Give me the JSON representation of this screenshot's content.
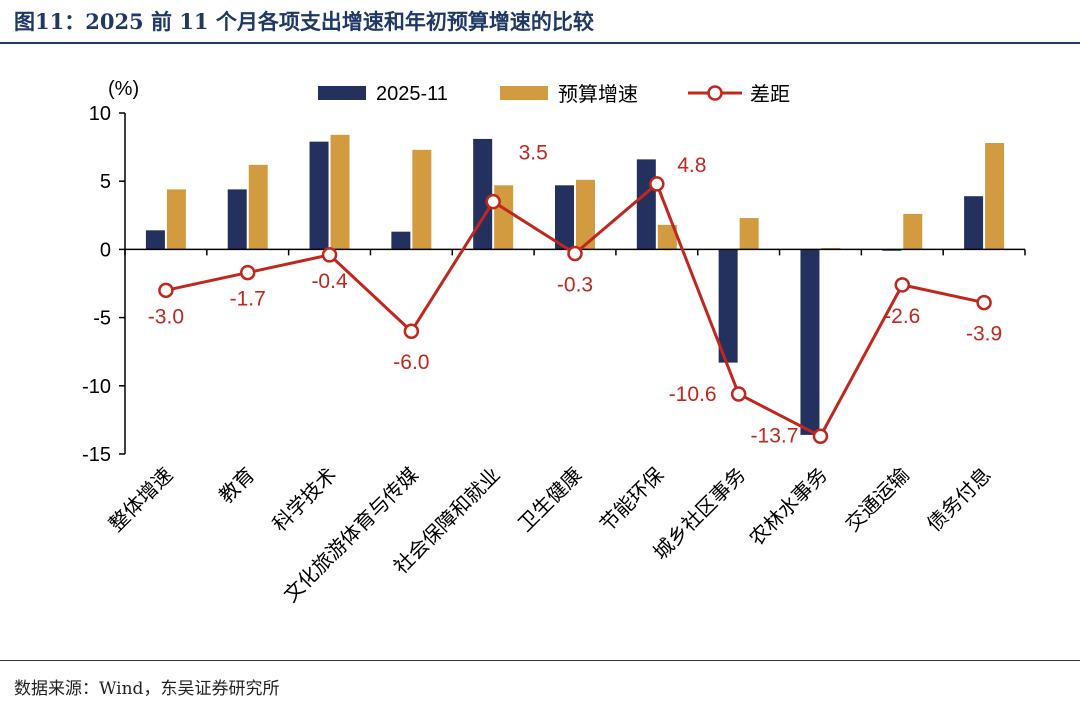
{
  "title": "图11：2025 前 11 个月各项支出增速和年初预算增速的比较",
  "source": "数据来源：Wind，东吴证券研究所",
  "colors": {
    "navy": "#24315e",
    "gold": "#d39b3f",
    "red": "#c0271e"
  },
  "chart_data": {
    "type": "bar",
    "unit_label": "(%)",
    "categories": [
      "整体增速",
      "教育",
      "科学技术",
      "文化旅游体育与传媒",
      "社会保障和就业",
      "卫生健康",
      "节能环保",
      "城乡社区事务",
      "农林水事务",
      "交通运输",
      "债务付息"
    ],
    "series": [
      {
        "name": "2025-11",
        "type": "bar",
        "values": [
          1.4,
          4.4,
          7.9,
          1.3,
          8.1,
          4.7,
          6.6,
          -8.3,
          -13.6,
          -0.1,
          3.9
        ]
      },
      {
        "name": "预算增速",
        "type": "bar",
        "values": [
          4.4,
          6.2,
          8.4,
          7.3,
          4.7,
          5.1,
          1.8,
          2.3,
          0.1,
          2.6,
          7.8
        ]
      },
      {
        "name": "差距",
        "type": "line",
        "values": [
          -3.0,
          -1.7,
          -0.4,
          -6.0,
          3.5,
          -0.3,
          4.8,
          -10.6,
          -13.7,
          -2.6,
          -3.9
        ],
        "labels": [
          "-3.0",
          "-1.7",
          "-0.4",
          "-6.0",
          "3.5",
          "-0.3",
          "4.8",
          "-10.6",
          "-13.7",
          "-2.6",
          "-3.9"
        ]
      }
    ],
    "ylim": [
      -15,
      10
    ],
    "yticks": [
      "10",
      "5",
      "0",
      "-5",
      "-10",
      "-15"
    ],
    "legend": "top"
  }
}
